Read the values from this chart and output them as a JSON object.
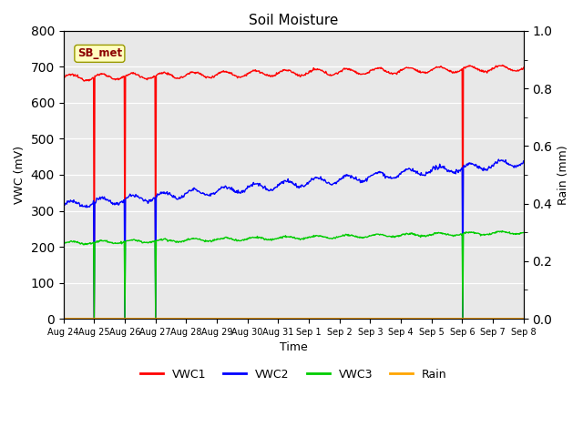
{
  "title": "Soil Moisture",
  "xlabel": "Time",
  "ylabel_left": "VWC (mV)",
  "ylabel_right": "Rain (mm)",
  "ylim_left": [
    0,
    800
  ],
  "ylim_right": [
    0.0,
    1.0
  ],
  "yticks_left": [
    0,
    100,
    200,
    300,
    400,
    500,
    600,
    700,
    800
  ],
  "yticks_right": [
    0.0,
    0.2,
    0.4,
    0.6,
    0.8,
    1.0
  ],
  "annotation_text": "SB_met",
  "annotation_color": "#8B0000",
  "annotation_bg": "#FFFFC0",
  "annotation_edge": "#999900",
  "bg_color": "#E8E8E8",
  "line_colors": {
    "VWC1": "#FF0000",
    "VWC2": "#0000FF",
    "VWC3": "#00CC00",
    "Rain": "#FFA500"
  },
  "x_tick_labels": [
    "Aug 24",
    "Aug 25",
    "Aug 26",
    "Aug 27",
    "Aug 28",
    "Aug 29",
    "Aug 30",
    "Aug 31",
    "Sep 1",
    "Sep 2",
    "Sep 3",
    "Sep 4",
    "Sep 5",
    "Sep 6",
    "Sep 7",
    "Sep 8"
  ],
  "n_days": 15,
  "vwc1_base": 670,
  "vwc1_trend": 1.8,
  "vwc1_wave_amp": 8,
  "vwc2_base": 315,
  "vwc2_trend": 8.0,
  "vwc2_wave_amp": 10,
  "vwc3_base": 210,
  "vwc3_trend": 2.0,
  "vwc3_wave_amp": 4,
  "spike_days": [
    1.0,
    2.0,
    3.0,
    13.0
  ],
  "pts_per_day": 48,
  "linewidth": 1.0
}
